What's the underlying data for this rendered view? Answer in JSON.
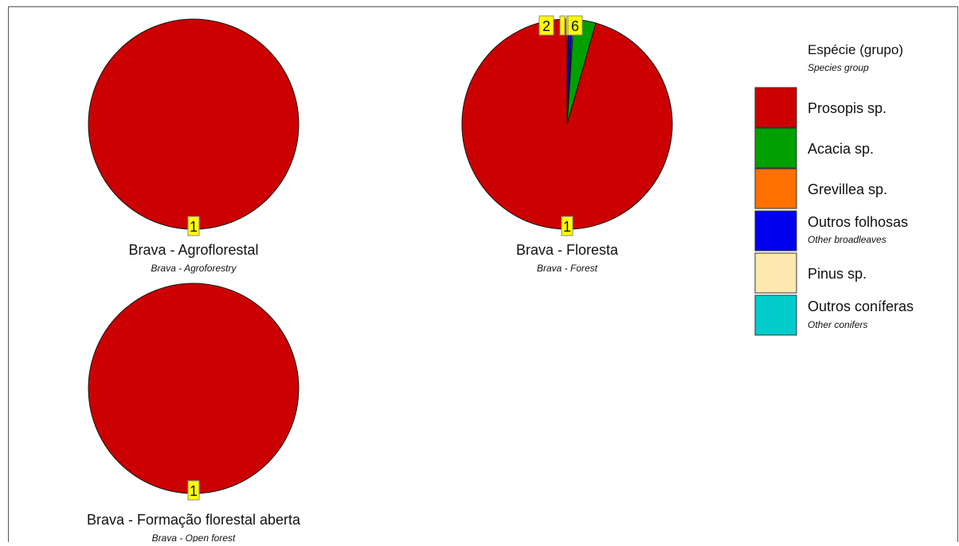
{
  "colors": {
    "background": "#ffffff",
    "border": "#555555",
    "pie_outline": "#111111",
    "label_box": "#ffff00"
  },
  "legend": {
    "title": "Espécie (grupo)",
    "subtitle": "Species group",
    "items": [
      {
        "id": "1",
        "name": "Prosopis sp.",
        "sub": "",
        "color": "#cc0000"
      },
      {
        "id": "2",
        "name": "Acacia sp.",
        "sub": "",
        "color": "#00a000"
      },
      {
        "id": "3",
        "name": "Grevillea sp.",
        "sub": "",
        "color": "#ff7000"
      },
      {
        "id": "4",
        "name": "Outros folhosas",
        "sub": "Other broadleaves",
        "color": "#0000ee"
      },
      {
        "id": "5",
        "name": "Pinus sp.",
        "sub": "",
        "color": "#fde8b0"
      },
      {
        "id": "6",
        "name": "Outros coníferas",
        "sub": "Other conifers",
        "color": "#00cccc"
      }
    ]
  },
  "chart_data": [
    {
      "type": "pie",
      "title": "Brava - Agroflorestal",
      "subtitle": "Brava - Agroforestry",
      "slices": [
        {
          "group": "1",
          "value": 100
        }
      ]
    },
    {
      "type": "pie",
      "title": "Brava - Floresta",
      "subtitle": "Brava - Forest",
      "slices": [
        {
          "group": "1",
          "value": 95.6
        },
        {
          "group": "2",
          "value": 3.4
        },
        {
          "group": "5",
          "value": 0.2
        },
        {
          "group": "4",
          "value": 0.6
        },
        {
          "group": "6",
          "value": 0.2
        }
      ],
      "label_groups": [
        "1",
        "2",
        "5",
        "4",
        "6"
      ]
    },
    {
      "type": "pie",
      "title": "Brava - Formação florestal aberta",
      "subtitle": "Brava - Open forest",
      "slices": [
        {
          "group": "1",
          "value": 100
        }
      ]
    }
  ]
}
